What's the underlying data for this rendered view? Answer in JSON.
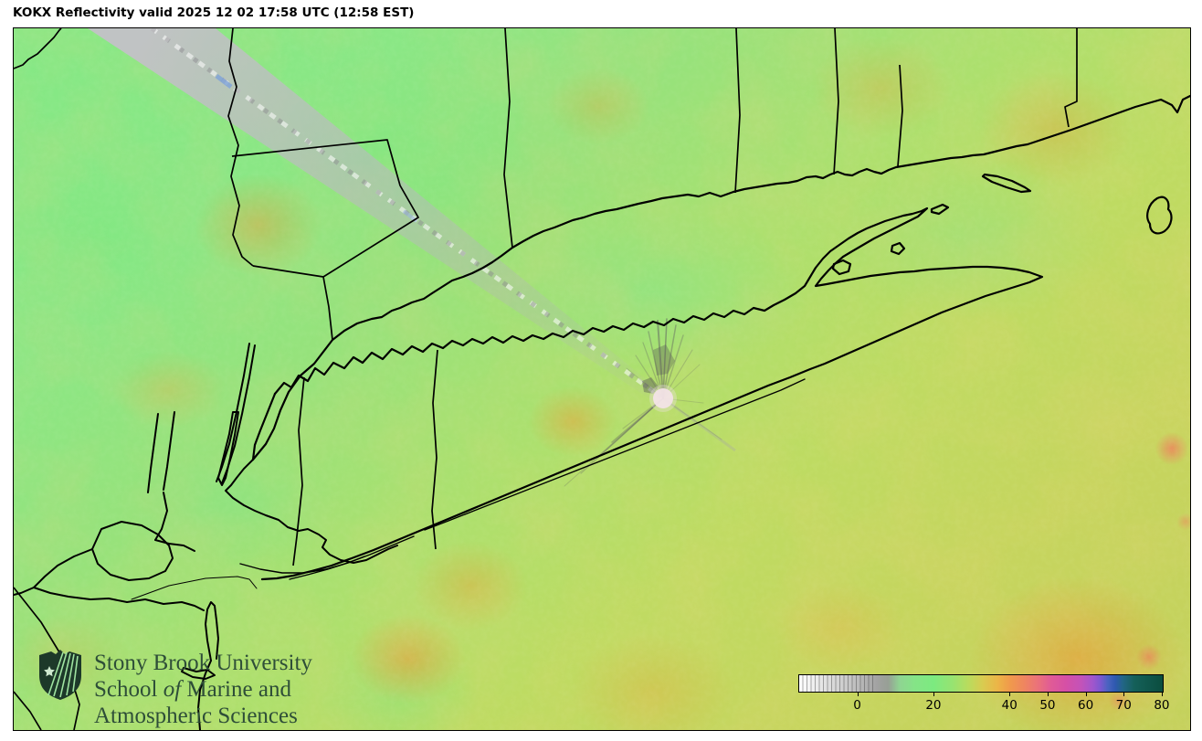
{
  "header": {
    "title": "KOKX Reflectivity valid 2025 12 02 17:58 UTC (12:58 EST)"
  },
  "branding": {
    "line1": "Stony Brook University",
    "line2_prefix": "School ",
    "line2_italic": "of",
    "line2_suffix": " Marine and",
    "line3": "Atmospheric Sciences"
  },
  "colorbar": {
    "tick_labels": [
      "0",
      "20",
      "40",
      "50",
      "60",
      "70",
      "80"
    ],
    "tick_values": [
      0,
      20,
      40,
      50,
      60,
      70,
      80
    ],
    "value_min": -15.5,
    "value_max": 80.5,
    "gradient_stops": [
      {
        "v": -15.5,
        "c": "#ffffff"
      },
      {
        "v": -10,
        "c": "#e8e8e8"
      },
      {
        "v": -4,
        "c": "#cfcfcf"
      },
      {
        "v": 0,
        "c": "#bcbcbc"
      },
      {
        "v": 5,
        "c": "#a2a2a2"
      },
      {
        "v": 8,
        "c": "#979f95"
      },
      {
        "v": 11,
        "c": "#8fd492"
      },
      {
        "v": 15,
        "c": "#85e487"
      },
      {
        "v": 20,
        "c": "#7cea80"
      },
      {
        "v": 25,
        "c": "#97e371"
      },
      {
        "v": 29,
        "c": "#b8dc5e"
      },
      {
        "v": 33,
        "c": "#d9cb50"
      },
      {
        "v": 37,
        "c": "#ecb447"
      },
      {
        "v": 40,
        "c": "#f09b4b"
      },
      {
        "v": 44,
        "c": "#ef8560"
      },
      {
        "v": 48,
        "c": "#ea6f7e"
      },
      {
        "v": 51,
        "c": "#e05b96"
      },
      {
        "v": 55,
        "c": "#d550a6"
      },
      {
        "v": 59,
        "c": "#c353b9"
      },
      {
        "v": 62,
        "c": "#a156cc"
      },
      {
        "v": 64,
        "c": "#7d58d0"
      },
      {
        "v": 66,
        "c": "#4a63c0"
      },
      {
        "v": 68,
        "c": "#2e59ae"
      },
      {
        "v": 70,
        "c": "#226585"
      },
      {
        "v": 73,
        "c": "#156059"
      },
      {
        "v": 80,
        "c": "#0b4e40"
      }
    ]
  },
  "colors": {
    "map_base_green": "#8be583",
    "orange_patch": "#eca23c",
    "salmon_patch": "#ec8a5e",
    "beam_gray": "#b3b1b6",
    "boundary_black": "#000000",
    "logo_green": "#2e4e38",
    "radar_dot": "#f2e3e6"
  }
}
